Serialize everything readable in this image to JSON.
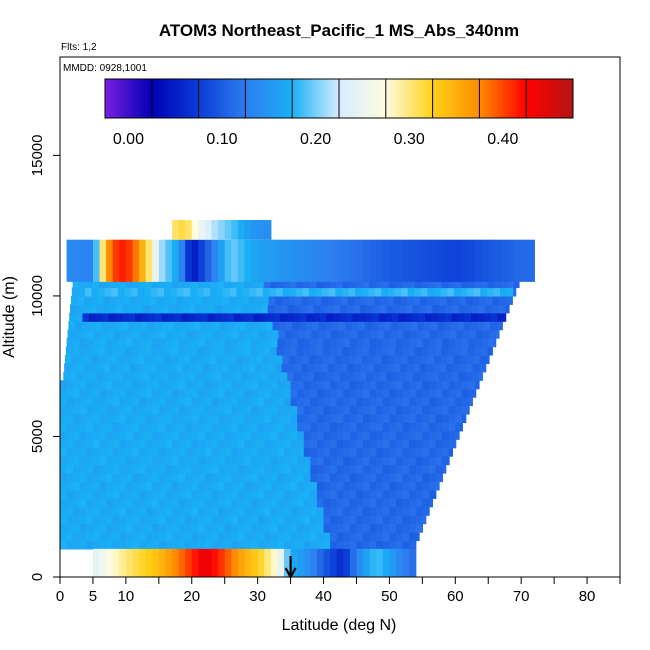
{
  "chart_data": {
    "type": "heatmap",
    "title": "ATOM3 Northeast_Pacific_1 MS_Abs_340nm",
    "annotations": {
      "flights": "Flts: 1,2",
      "dates": "MMDD: 0928,1001"
    },
    "xlabel": "Latitude (deg N)",
    "ylabel": "Altitude (m)",
    "xlim": [
      0,
      85
    ],
    "ylim": [
      0,
      18500
    ],
    "x_ticks": [
      0,
      5,
      10,
      20,
      30,
      40,
      50,
      60,
      70,
      80
    ],
    "x_minor_ticks": [
      15,
      25,
      35,
      45,
      55,
      65,
      75,
      85
    ],
    "y_ticks": [
      0,
      5000,
      10000,
      15000
    ],
    "colorbar": {
      "range": [
        -0.025,
        0.475
      ],
      "ticks": [
        0.0,
        0.1,
        0.2,
        0.3,
        0.4
      ],
      "tick_labels": [
        "0.00",
        "0.10",
        "0.20",
        "0.30",
        "0.40"
      ],
      "color_stops": [
        "#7a1fe0",
        "#0000b3",
        "#0a3cd6",
        "#2e7df0",
        "#19b0f5",
        "#d6ecff",
        "#fffce0",
        "#ffd21a",
        "#ff8c00",
        "#ff0000",
        "#b31515"
      ]
    },
    "marker": {
      "type": "arrow",
      "x": 35,
      "label": ""
    },
    "band_1000m": {
      "altitude_range": [
        0,
        1000
      ],
      "x_range": [
        5,
        54
      ],
      "positions": [
        5,
        10,
        15,
        20,
        22,
        25,
        28,
        30,
        33,
        35,
        38,
        40,
        43,
        45,
        48,
        52,
        54
      ],
      "values": [
        0.24,
        0.3,
        0.34,
        0.41,
        0.44,
        0.4,
        0.35,
        0.33,
        0.27,
        0.17,
        0.14,
        0.1,
        0.06,
        0.13,
        0.19,
        0.13,
        0.11
      ]
    },
    "upper_layer": {
      "altitude_range": [
        10500,
        12000
      ],
      "x_range": [
        1,
        72
      ],
      "positions": [
        1,
        5,
        7,
        9,
        11,
        13,
        15,
        18,
        20,
        23,
        26,
        30,
        40,
        50,
        60,
        70
      ],
      "values": [
        0.14,
        0.13,
        0.36,
        0.42,
        0.4,
        0.33,
        0.22,
        0.16,
        0.04,
        0.12,
        0.2,
        0.16,
        0.13,
        0.1,
        0.08,
        0.11
      ]
    },
    "top_layer": {
      "altitude_range": [
        12000,
        12700
      ],
      "x_range": [
        17,
        32
      ],
      "positions": [
        17,
        19,
        21,
        23,
        25,
        27,
        29,
        32
      ],
      "values": [
        0.3,
        0.32,
        0.26,
        0.22,
        0.2,
        0.18,
        0.15,
        0.14
      ]
    },
    "southern_body_value": 0.17,
    "northern_body_value": 0.11,
    "mid_layers": [
      {
        "altitude": 10000,
        "note": "bright-blue streak",
        "value": 0.18
      },
      {
        "altitude": 9000,
        "note": "dark-blue streak",
        "value": 0.06
      }
    ]
  }
}
